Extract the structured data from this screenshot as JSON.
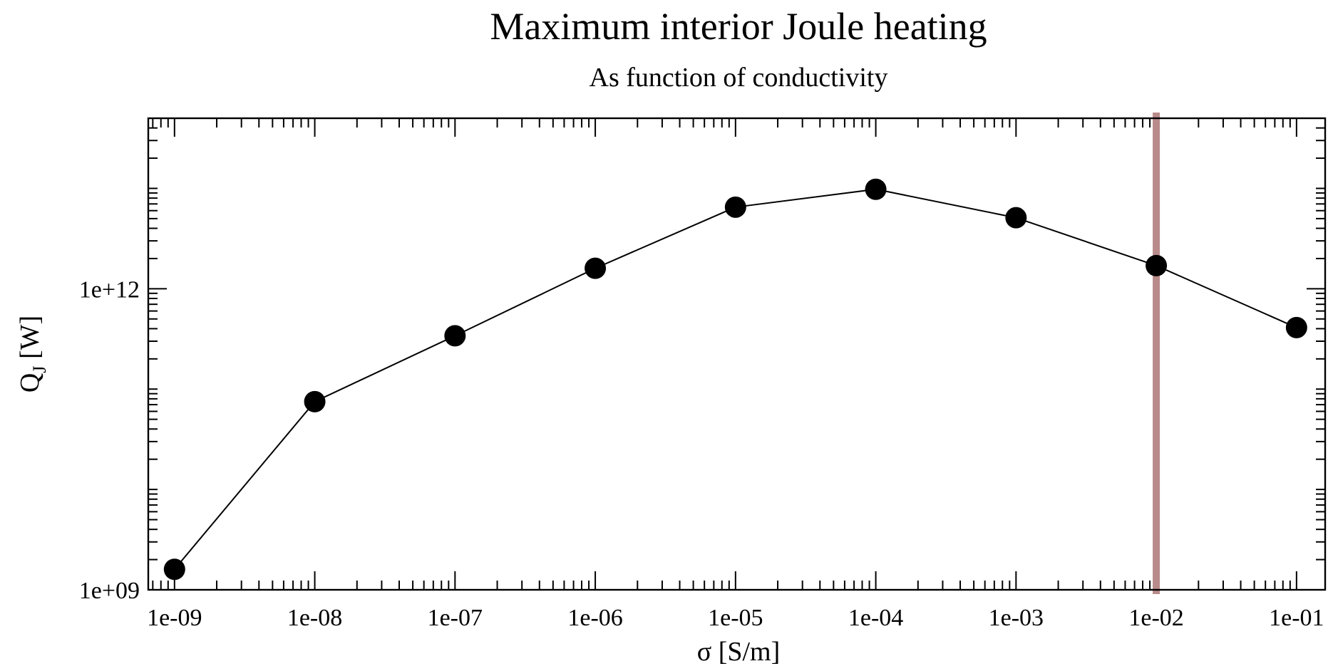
{
  "chart_data": {
    "type": "scatter",
    "title": "Maximum interior Joule heating",
    "subtitle": "As function of conductivity",
    "xlabel": "σ  [S/m]",
    "ylabel_main": "Q",
    "ylabel_sub": "J",
    "ylabel_unit": "[W]",
    "xscale": "log",
    "yscale": "log",
    "xlim": [
      6.5e-10,
      0.16
    ],
    "ylim": [
      1000000000.0,
      50000000000000.0
    ],
    "x_ticks": [
      1e-09,
      1e-08,
      1e-07,
      1e-06,
      1e-05,
      0.0001,
      0.001,
      0.01,
      0.1
    ],
    "x_tick_labels": [
      "1e-09",
      "1e-08",
      "1e-07",
      "1e-06",
      "1e-05",
      "1e-04",
      "1e-03",
      "1e-02",
      "1e-01"
    ],
    "y_ticks": [
      1000000000.0,
      1000000000000.0
    ],
    "y_tick_labels": [
      "1e+09",
      "1e+12"
    ],
    "series": [
      {
        "x": [
          1e-09,
          1e-08,
          1e-07,
          1e-06,
          1e-05,
          0.0001,
          0.001,
          0.01,
          0.1
        ],
        "y": [
          1600000000.0,
          75000000000.0,
          340000000000.0,
          1600000000000.0,
          6500000000000.0,
          9800000000000.0,
          5100000000000.0,
          1700000000000.0,
          410000000000.0
        ],
        "color": "#000000",
        "marker": "circle",
        "line": true
      }
    ],
    "vertical_line": {
      "x": 0.01,
      "color": "#b88a8a"
    },
    "grid": false
  }
}
